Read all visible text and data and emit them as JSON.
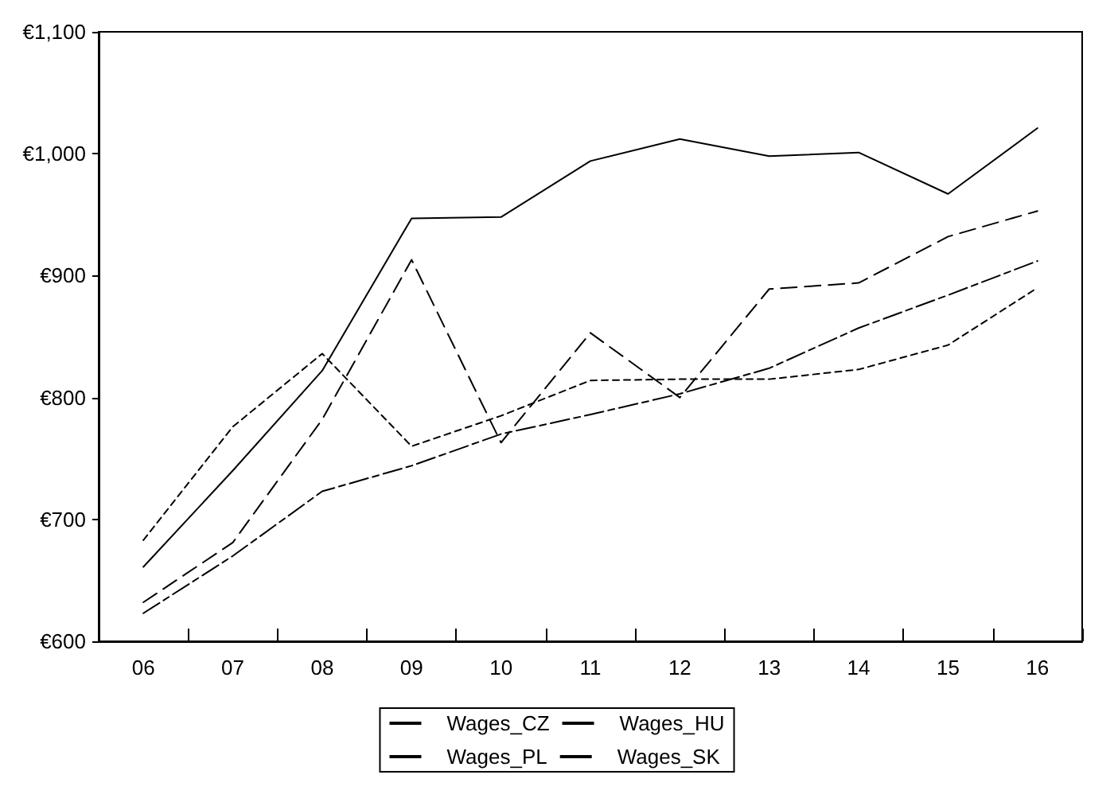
{
  "chart_data": {
    "type": "line",
    "categories": [
      "06",
      "07",
      "08",
      "09",
      "10",
      "11",
      "12",
      "13",
      "14",
      "15",
      "16"
    ],
    "series": [
      {
        "name": "Wages_CZ",
        "color": "#000000",
        "line_style": "solid",
        "values": [
          661,
          740,
          822,
          947,
          948,
          994,
          1012,
          998,
          1001,
          967,
          1021
        ]
      },
      {
        "name": "Wages_HU",
        "color": "#000000",
        "line_style": "dashed",
        "values": [
          683,
          776,
          836,
          760,
          785,
          814,
          815,
          815,
          823,
          843,
          890
        ]
      },
      {
        "name": "Wages_PL",
        "color": "#000000",
        "line_style": "dashed",
        "values": [
          632,
          681,
          782,
          913,
          763,
          853,
          800,
          889,
          894,
          932,
          953
        ]
      },
      {
        "name": "Wages_SK",
        "color": "#000000",
        "line_style": "dashed",
        "values": [
          623,
          670,
          723,
          744,
          770,
          786,
          803,
          824,
          857,
          884,
          912
        ]
      }
    ],
    "ylim": [
      600,
      1100
    ],
    "yticks": [
      {
        "value": 600,
        "label": "€600"
      },
      {
        "value": 700,
        "label": "€700"
      },
      {
        "value": 800,
        "label": "€800"
      },
      {
        "value": 900,
        "label": "€900"
      },
      {
        "value": 1000,
        "label": "€1,000"
      },
      {
        "value": 1100,
        "label": "€1,100"
      }
    ],
    "grid": false,
    "legend": "bottom",
    "marker": "none"
  }
}
